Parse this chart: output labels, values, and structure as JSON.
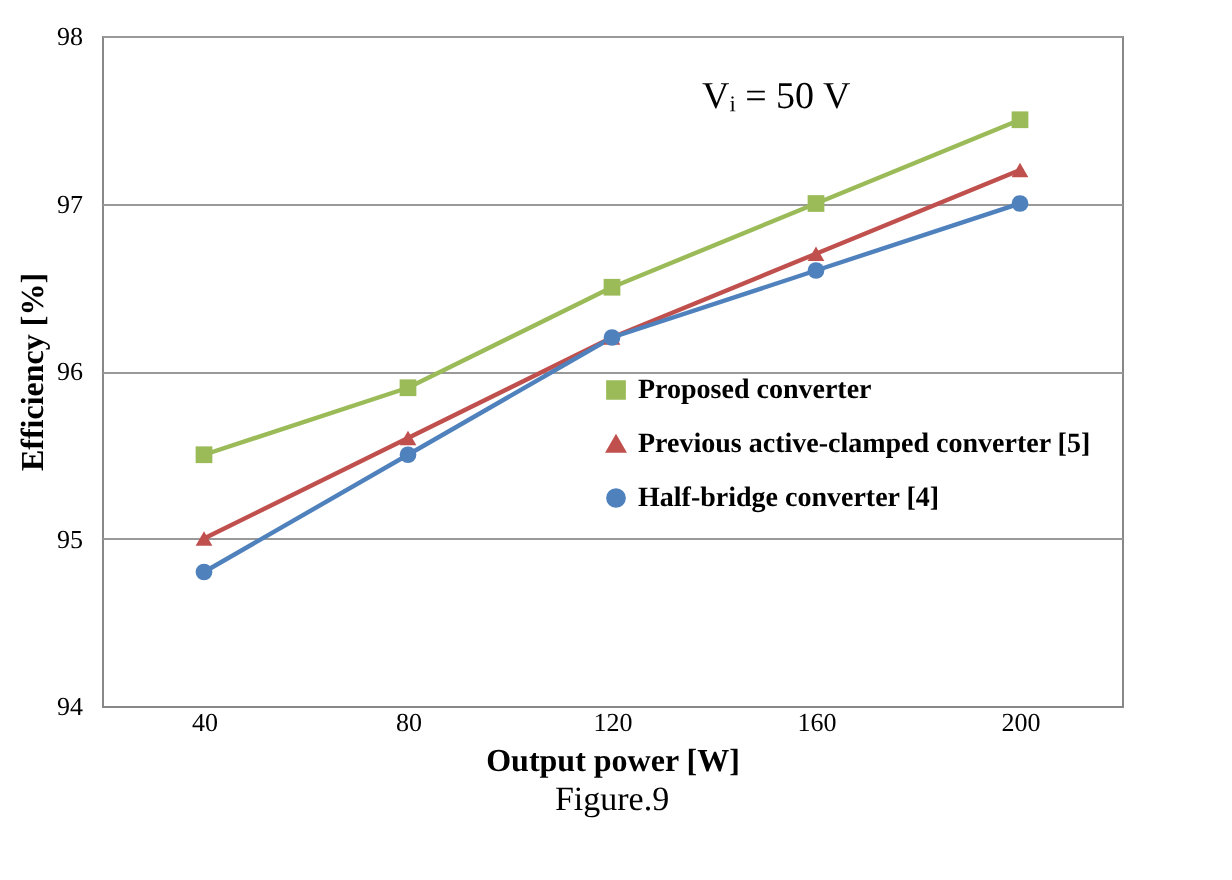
{
  "chart_data": {
    "type": "line",
    "xlabel": "Output power [W]",
    "ylabel": "Efficiency [%]",
    "categories": [
      "40",
      "80",
      "120",
      "160",
      "200"
    ],
    "ylim": [
      94,
      98
    ],
    "yticks": [
      94,
      95,
      96,
      97,
      98
    ],
    "grid": "y",
    "legend": "right",
    "line_style": "solid",
    "annotations": [
      "Vᵢ = 50 V",
      "Figure.9"
    ],
    "series": [
      {
        "name": "Proposed converter",
        "color": "#9bbb59",
        "marker": "square",
        "values": [
          95.5,
          95.9,
          96.5,
          97.0,
          97.5
        ]
      },
      {
        "name": "Previous active-clamped converter [5]",
        "color": "#c0504d",
        "marker": "triangle",
        "values": [
          95.0,
          95.6,
          96.2,
          96.7,
          97.2
        ]
      },
      {
        "name": "Half-bridge converter [4]",
        "color": "#4f81bd",
        "marker": "circle",
        "values": [
          94.8,
          95.5,
          96.2,
          96.6,
          97.0
        ]
      }
    ]
  }
}
